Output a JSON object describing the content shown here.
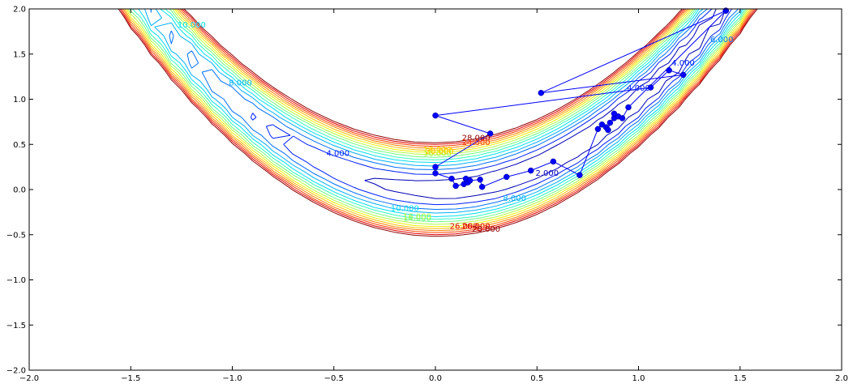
{
  "chart_data": {
    "type": "contour_with_path",
    "title": "",
    "xlabel": "",
    "ylabel": "",
    "xlim": [
      -2.0,
      2.0
    ],
    "ylim": [
      -2.0,
      2.0
    ],
    "x_ticks": [
      -2.0,
      -1.5,
      -1.0,
      -0.5,
      0.0,
      0.5,
      1.0,
      1.5,
      2.0
    ],
    "y_ticks": [
      -2.0,
      -1.5,
      -1.0,
      -0.5,
      0.0,
      0.5,
      1.0,
      1.5,
      2.0
    ],
    "x_tick_labels": [
      "−2.0",
      "−1.5",
      "−1.0",
      "−0.5",
      "0.0",
      "0.5",
      "1.0",
      "1.5",
      "2.0"
    ],
    "y_tick_labels": [
      "−2.0",
      "−1.5",
      "−1.0",
      "−0.5",
      "0.0",
      "0.5",
      "1.0",
      "1.5",
      "2.0"
    ],
    "contour": {
      "function": "(1 - x)^2 + 100 (y - x^2)^2",
      "levels": [
        2,
        4,
        6,
        8,
        10,
        12,
        14,
        16,
        18,
        20,
        22,
        24,
        26,
        28
      ],
      "colors": [
        "#0000b8",
        "#0020ff",
        "#0070ff",
        "#00b0ff",
        "#00e0f0",
        "#30ffc0",
        "#70ff80",
        "#b0ff40",
        "#f0f000",
        "#ffc000",
        "#ff8000",
        "#ff4000",
        "#e00000",
        "#900000"
      ],
      "labels": [
        {
          "text": "10.000",
          "x": -1.2,
          "y": 1.82,
          "level": 10
        },
        {
          "text": "8.000",
          "x": -0.96,
          "y": 1.18,
          "level": 8
        },
        {
          "text": "4.000",
          "x": -0.48,
          "y": 0.4,
          "level": 4
        },
        {
          "text": "10.000",
          "x": -0.15,
          "y": -0.21,
          "level": 10
        },
        {
          "text": "8.000",
          "x": 0.39,
          "y": -0.1,
          "level": 8
        },
        {
          "text": "2.000",
          "x": 0.55,
          "y": 0.18,
          "level": 2
        },
        {
          "text": "4.000",
          "x": 1.0,
          "y": 1.12,
          "level": 4
        },
        {
          "text": "4.000",
          "x": 1.22,
          "y": 1.4,
          "level": 4
        },
        {
          "text": "6.000",
          "x": 1.41,
          "y": 1.66,
          "level": 6
        },
        {
          "text": "18.000",
          "x": 0.01,
          "y": 0.44,
          "level": 18
        },
        {
          "text": "16.000",
          "x": 0.01,
          "y": 0.4,
          "level": 16
        },
        {
          "text": "14.000",
          "x": -0.09,
          "y": -0.32,
          "level": 14
        },
        {
          "text": "16.000",
          "x": -0.09,
          "y": -0.3,
          "level": 16
        },
        {
          "text": "28.000",
          "x": 0.2,
          "y": 0.57,
          "level": 28
        },
        {
          "text": "24.000",
          "x": 0.2,
          "y": 0.52,
          "level": 24
        },
        {
          "text": "20.000",
          "x": 0.02,
          "y": 0.42,
          "level": 20
        },
        {
          "text": "26.000",
          "x": 0.14,
          "y": -0.41,
          "level": 26
        },
        {
          "text": "26.000",
          "x": 0.2,
          "y": -0.41,
          "level": 26
        },
        {
          "text": "28.000",
          "x": 0.25,
          "y": -0.44,
          "level": 28
        }
      ]
    },
    "path": {
      "color": "#0000ff",
      "points": [
        [
          1.43,
          1.98
        ],
        [
          0.52,
          1.07
        ],
        [
          1.22,
          1.27
        ],
        [
          1.15,
          1.32
        ],
        [
          1.06,
          1.13
        ],
        [
          0.0,
          0.82
        ],
        [
          0.27,
          0.62
        ],
        [
          0.0,
          0.25
        ],
        [
          0.0,
          0.18
        ],
        [
          0.08,
          0.12
        ],
        [
          0.1,
          0.04
        ],
        [
          0.14,
          0.06
        ],
        [
          0.15,
          0.12
        ],
        [
          0.16,
          0.08
        ],
        [
          0.17,
          0.1
        ],
        [
          0.22,
          0.11
        ],
        [
          0.23,
          0.03
        ],
        [
          0.35,
          0.14
        ],
        [
          0.47,
          0.21
        ],
        [
          0.58,
          0.31
        ],
        [
          0.71,
          0.16
        ],
        [
          0.8,
          0.67
        ],
        [
          0.82,
          0.72
        ],
        [
          0.84,
          0.69
        ],
        [
          0.85,
          0.66
        ],
        [
          0.86,
          0.74
        ],
        [
          0.88,
          0.79
        ],
        [
          0.88,
          0.84
        ],
        [
          0.9,
          0.81
        ],
        [
          0.92,
          0.79
        ],
        [
          0.95,
          0.91
        ],
        [
          1.43,
          1.98
        ]
      ]
    }
  }
}
